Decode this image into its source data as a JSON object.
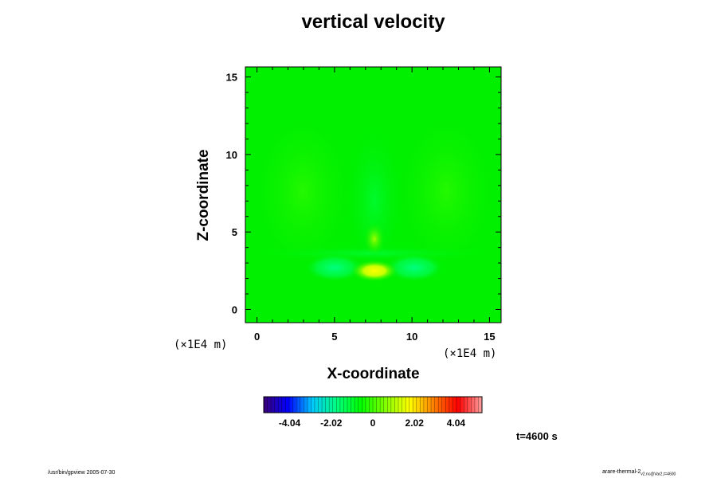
{
  "chart_data": {
    "type": "heatmap",
    "title": "vertical velocity",
    "xlabel": "X-coordinate",
    "ylabel": "Z-coordinate",
    "x_units": "(×1E4 m)",
    "y_units": "(×1E4 m)",
    "xlim": [
      -0.75,
      15.75
    ],
    "ylim": [
      -0.85,
      15.65
    ],
    "x_ticks": [
      0,
      5,
      10,
      15
    ],
    "y_ticks": [
      0,
      5,
      10,
      15
    ],
    "colorbar": {
      "range": [
        -5.3,
        5.3
      ],
      "ticks": [
        -4.04,
        -2.02,
        0,
        2.02,
        4.04
      ],
      "tick_labels": [
        "-4.04",
        "-2.02",
        "0",
        "2.02",
        "4.04"
      ],
      "colors": [
        "#3a0078",
        "#0000ff",
        "#00c8ff",
        "#00ff80",
        "#00ff00",
        "#80ff00",
        "#ffff00",
        "#ff8000",
        "#ff0000",
        "#ffa0a0"
      ]
    },
    "field": {
      "background": "#00f000",
      "features": [
        {
          "kind": "updraft",
          "x": 7.6,
          "z": 2.6,
          "value": 2.0
        },
        {
          "kind": "updraft",
          "x": 7.6,
          "z": 4.3,
          "value": 0.9
        },
        {
          "kind": "downdraft",
          "x": 5.6,
          "z": 2.8,
          "value": -0.9
        },
        {
          "kind": "downdraft",
          "x": 9.8,
          "z": 2.8,
          "value": -0.9
        },
        {
          "kind": "downdraft",
          "x": 7.6,
          "z": 9.0,
          "value": -0.2
        }
      ]
    }
  },
  "annotation": {
    "time": "t=4600 s",
    "footer_left": "/usr/bin/gpview 2005-07-30",
    "footer_right_main": "arare-thermal-2",
    "footer_right_sub": "v2.nc@Var2,t=4600"
  }
}
